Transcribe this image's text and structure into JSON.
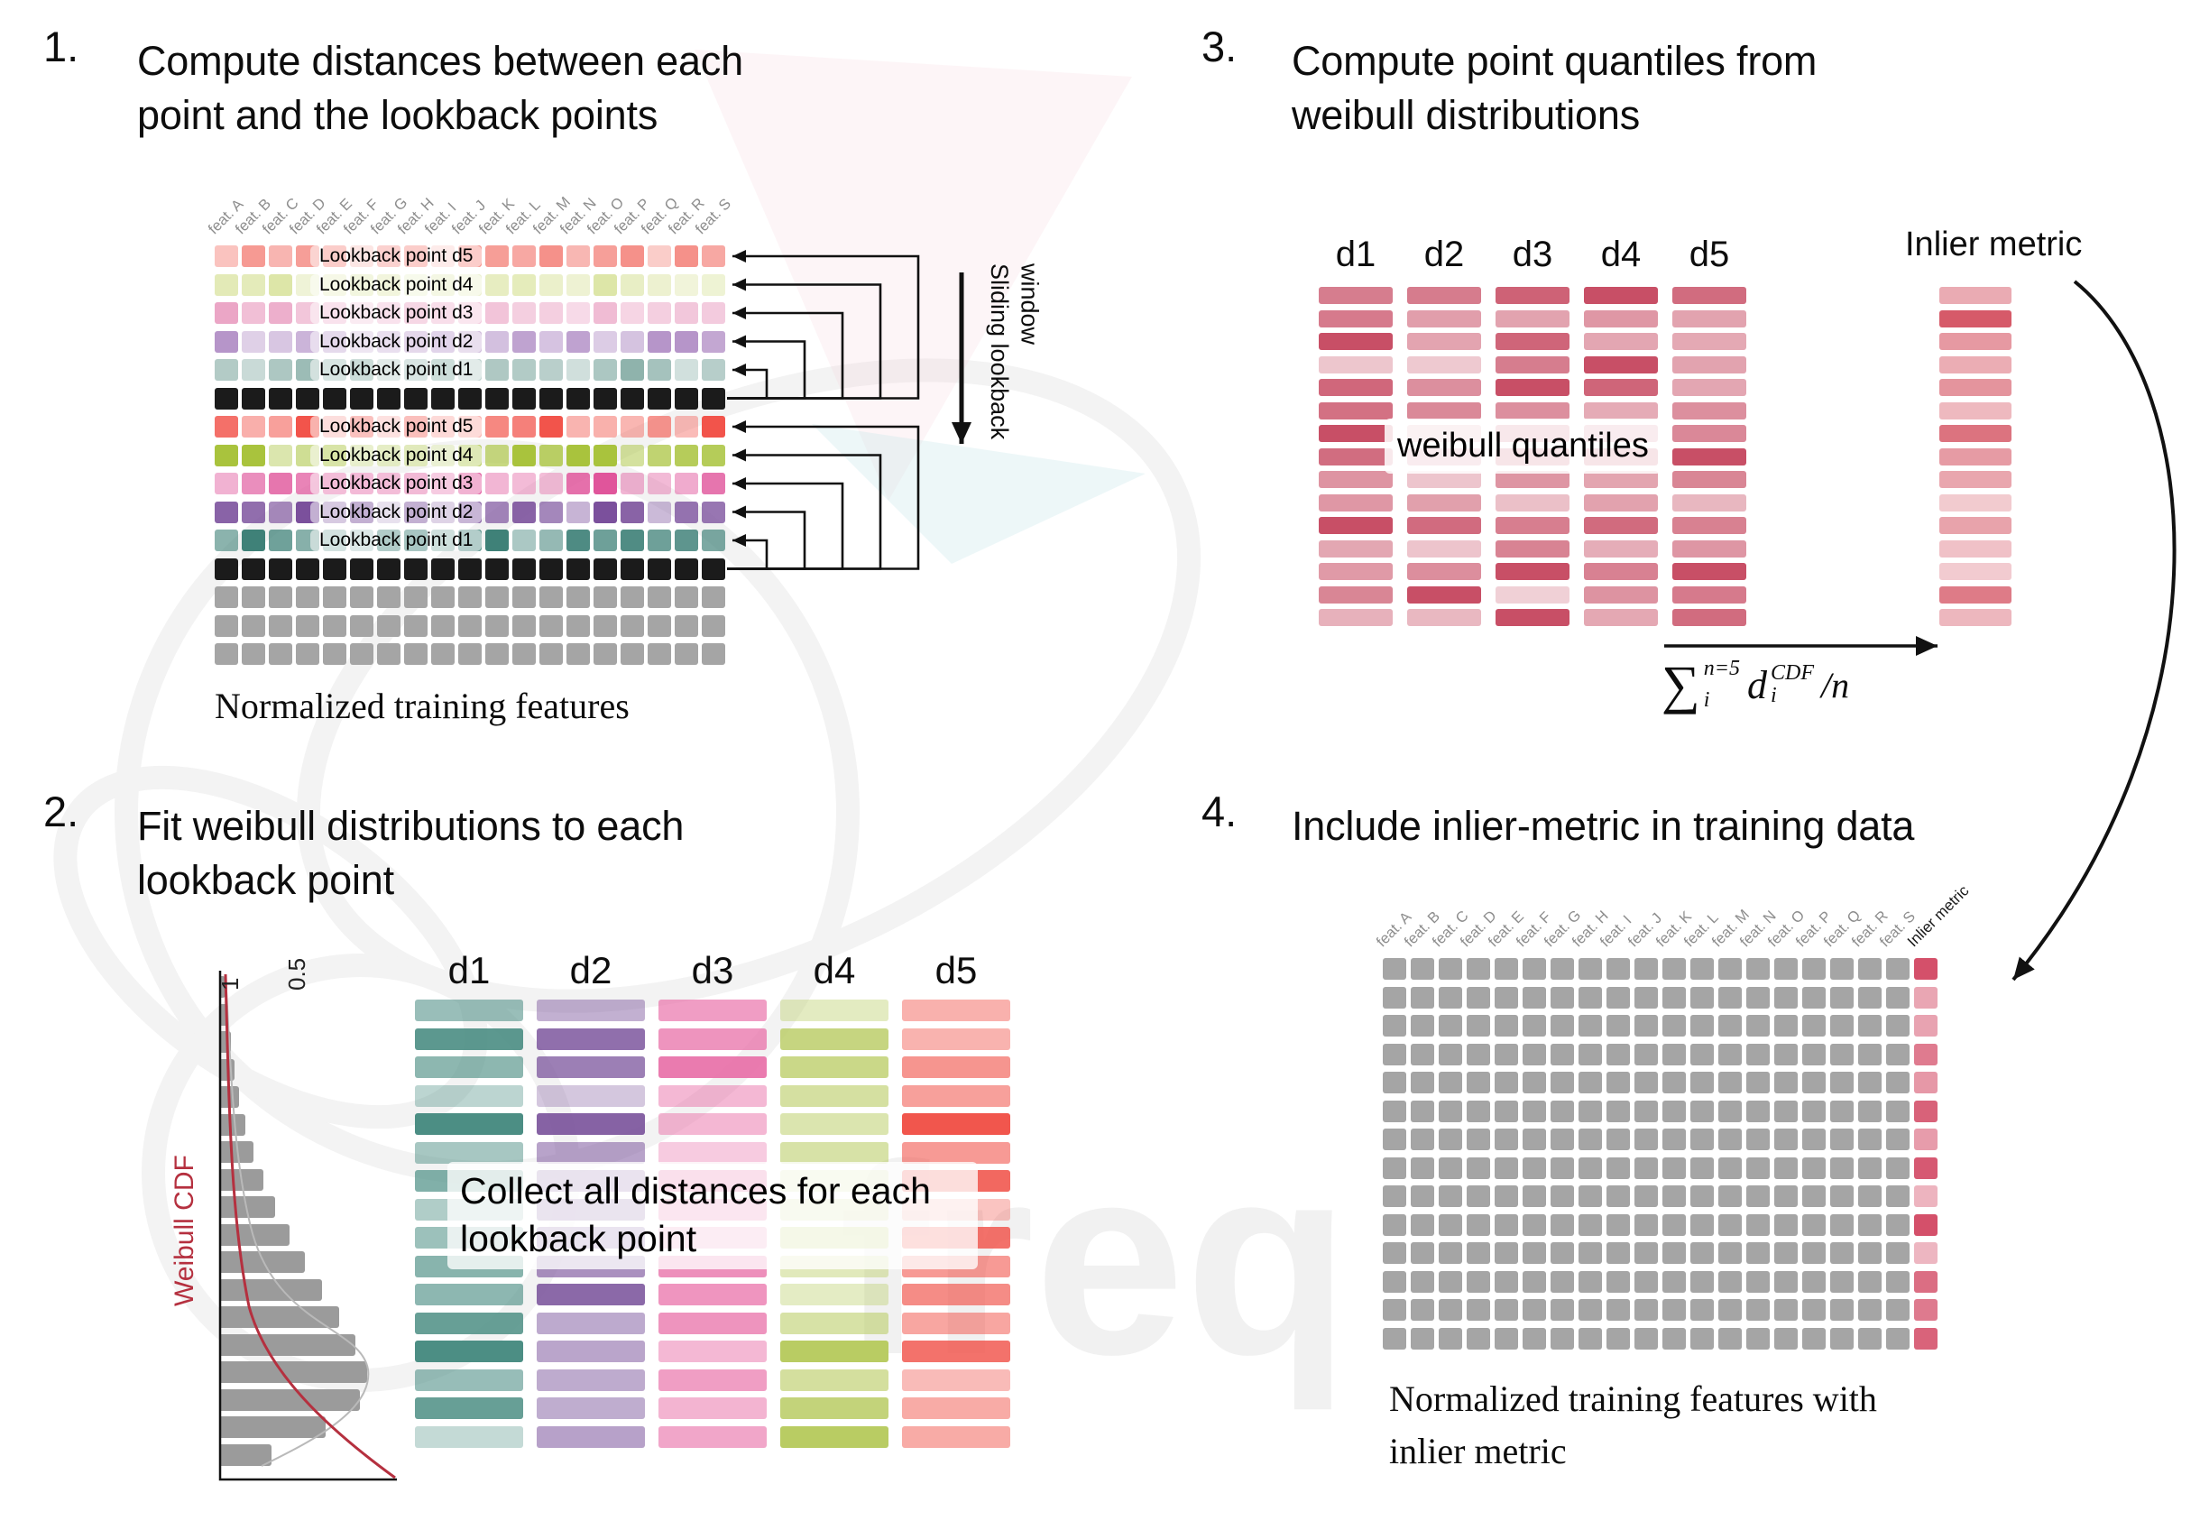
{
  "watermark": {
    "text": "freq"
  },
  "features": [
    "feat. A",
    "feat. B",
    "feat. C",
    "feat. D",
    "feat. E",
    "feat. F",
    "feat. G",
    "feat. H",
    "feat. I",
    "feat. J",
    "feat. K",
    "feat. L",
    "feat. M",
    "feat. N",
    "feat. O",
    "feat. P",
    "feat. Q",
    "feat. R",
    "feat. S"
  ],
  "panel1": {
    "number": "1.",
    "title": "Compute distances between each point and the lookback points",
    "sliding_label": "Sliding lookback window",
    "caption": "Normalized training features",
    "rows": [
      {
        "label": "Lookback point d5",
        "color": "#f5918a"
      },
      {
        "label": "Lookback point d4",
        "color": "#dde6a8"
      },
      {
        "label": "Lookback point d3",
        "color": "#eba6c6"
      },
      {
        "label": "Lookback point d2",
        "color": "#b695c9"
      },
      {
        "label": "Lookback point d1",
        "color": "#8fb3ac"
      },
      {
        "color": "#1b1b1b"
      },
      {
        "label": "Lookback point d5",
        "color": "#f2544b"
      },
      {
        "label": "Lookback point d4",
        "color": "#a9c33d"
      },
      {
        "label": "Lookback point d3",
        "color": "#e0559b"
      },
      {
        "label": "Lookback point d2",
        "color": "#7b509c"
      },
      {
        "label": "Lookback point d1",
        "color": "#3f8178"
      },
      {
        "color": "#1b1b1b"
      },
      {
        "color": "#a5a5a5"
      },
      {
        "color": "#a5a5a5"
      },
      {
        "color": "#a5a5a5"
      }
    ]
  },
  "panel2": {
    "number": "2.",
    "title": "Fit weibull distributions to each lookback point",
    "cdf_label": "Weibull CDF",
    "ticks": [
      "1",
      "0.5"
    ],
    "collect_label": "Collect all distances for each lookback point",
    "hist": [
      5,
      8,
      11,
      15,
      20,
      27,
      36,
      47,
      60,
      76,
      93,
      112,
      131,
      149,
      162,
      154,
      116,
      56
    ],
    "columns": [
      {
        "name": "d1",
        "color": "#4c8e84"
      },
      {
        "name": "d2",
        "color": "#7b549c"
      },
      {
        "name": "d3",
        "color": "#e765a2"
      },
      {
        "name": "d4",
        "color": "#b9cc63"
      },
      {
        "name": "d5",
        "color": "#f1564d"
      }
    ]
  },
  "panel3": {
    "number": "3.",
    "title": "Compute point quantiles from weibull distributions",
    "quantiles_label": "weibull quantiles",
    "inlier_label": "Inlier metric",
    "columns": [
      "d1",
      "d2",
      "d3",
      "d4",
      "d5"
    ],
    "quantile_color": "#c84f66",
    "inlier_color": "#d65a69",
    "formula": {
      "sum": "∑",
      "sum_sup": "n=5",
      "sum_sub": "i",
      "term": "d",
      "term_sup": "CDF",
      "term_sub": "i",
      "tail": "/n"
    }
  },
  "panel4": {
    "number": "4.",
    "title": "Include inlier-metric in training data",
    "inlier_header": "Inlier metric",
    "caption": "Normalized training features with inlier metric",
    "cell_color": "#a5a5a5",
    "inlier_color": "#d4506a"
  }
}
